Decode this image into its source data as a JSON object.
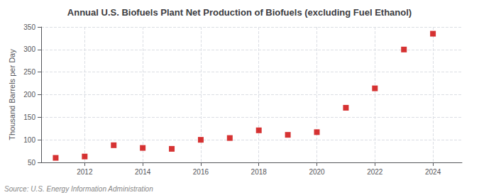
{
  "chart_data": {
    "type": "scatter",
    "title": "Annual U.S. Biofuels Plant Net Production of Biofuels (excluding Fuel Ethanol)",
    "ylabel": "Thousand Barrels per Day",
    "annotation": "Source: U.S. Energy Information Administration",
    "x": [
      2011,
      2012,
      2013,
      2014,
      2015,
      2016,
      2017,
      2018,
      2019,
      2020,
      2021,
      2022,
      2023,
      2024
    ],
    "values": [
      60,
      63,
      88,
      82,
      80,
      100,
      104,
      121,
      111,
      117,
      171,
      214,
      300,
      335
    ],
    "color": "#cc0000",
    "marker": "square",
    "xlim": [
      2010.5,
      2025
    ],
    "xticks": [
      2012,
      2014,
      2016,
      2018,
      2020,
      2022,
      2024
    ],
    "ylim": [
      50,
      350
    ],
    "yticks": [
      50,
      100,
      150,
      200,
      250,
      300,
      350
    ],
    "grid": true
  }
}
